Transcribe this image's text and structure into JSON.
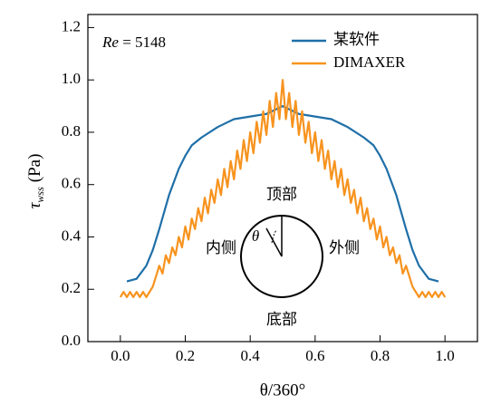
{
  "chart_data": {
    "type": "line",
    "annotation": {
      "symbol": "Re",
      "text": "= 5148"
    },
    "x_label": "θ/360°",
    "y_label": {
      "symbol": "τ",
      "subscript": "wss",
      "unit": "(Pa)"
    },
    "inset": {
      "top": "顶部",
      "bottom": "底部",
      "left": "内侧",
      "right": "外侧",
      "angle": "θ"
    },
    "xlim": [
      -0.1,
      1.1
    ],
    "ylim": [
      0,
      1.25
    ],
    "xticks": [
      {
        "value": 0,
        "label": "0.0"
      },
      {
        "value": 0.2,
        "label": "0.2"
      },
      {
        "value": 0.4,
        "label": "0.4"
      },
      {
        "value": 0.6,
        "label": "0.6"
      },
      {
        "value": 0.8,
        "label": "0.8"
      },
      {
        "value": 1,
        "label": "1.0"
      }
    ],
    "yticks": [
      {
        "value": 0,
        "label": "0.0"
      },
      {
        "value": 0.2,
        "label": "0.2"
      },
      {
        "value": 0.4,
        "label": "0.4"
      },
      {
        "value": 0.6,
        "label": "0.6"
      },
      {
        "value": 0.8,
        "label": "0.8"
      },
      {
        "value": 1,
        "label": "1.0"
      },
      {
        "value": 1.2,
        "label": "1.2"
      }
    ],
    "legend": "top-right",
    "series": [
      {
        "name": "某软件",
        "color": "#1f6fa8",
        "x": [
          0.02,
          0.05,
          0.08,
          0.1,
          0.12,
          0.15,
          0.18,
          0.2,
          0.22,
          0.25,
          0.3,
          0.35,
          0.4,
          0.45,
          0.5,
          0.55,
          0.6,
          0.65,
          0.7,
          0.75,
          0.78,
          0.8,
          0.82,
          0.85,
          0.88,
          0.9,
          0.92,
          0.95,
          0.98
        ],
        "values": [
          0.23,
          0.24,
          0.29,
          0.35,
          0.43,
          0.56,
          0.66,
          0.71,
          0.75,
          0.78,
          0.82,
          0.85,
          0.86,
          0.87,
          0.9,
          0.87,
          0.86,
          0.85,
          0.82,
          0.78,
          0.75,
          0.71,
          0.66,
          0.56,
          0.43,
          0.35,
          0.29,
          0.24,
          0.23
        ]
      },
      {
        "name": "DIMAXER",
        "color": "#f7931e",
        "x": [
          0,
          0.01,
          0.02,
          0.03,
          0.04,
          0.05,
          0.06,
          0.07,
          0.08,
          0.09,
          0.1,
          0.11,
          0.12,
          0.13,
          0.14,
          0.15,
          0.16,
          0.17,
          0.18,
          0.19,
          0.2,
          0.21,
          0.22,
          0.23,
          0.24,
          0.25,
          0.26,
          0.27,
          0.28,
          0.29,
          0.3,
          0.31,
          0.32,
          0.33,
          0.34,
          0.35,
          0.36,
          0.37,
          0.38,
          0.39,
          0.4,
          0.41,
          0.42,
          0.43,
          0.44,
          0.45,
          0.46,
          0.47,
          0.48,
          0.49,
          0.5,
          0.51,
          0.52,
          0.53,
          0.54,
          0.55,
          0.56,
          0.57,
          0.58,
          0.59,
          0.6,
          0.61,
          0.62,
          0.63,
          0.64,
          0.65,
          0.66,
          0.67,
          0.68,
          0.69,
          0.7,
          0.71,
          0.72,
          0.73,
          0.74,
          0.75,
          0.76,
          0.77,
          0.78,
          0.79,
          0.8,
          0.81,
          0.82,
          0.83,
          0.84,
          0.85,
          0.86,
          0.87,
          0.88,
          0.89,
          0.9,
          0.91,
          0.92,
          0.93,
          0.94,
          0.95,
          0.96,
          0.97,
          0.98,
          0.99,
          1
        ],
        "values": [
          0.17,
          0.19,
          0.17,
          0.19,
          0.17,
          0.19,
          0.17,
          0.19,
          0.17,
          0.19,
          0.21,
          0.25,
          0.29,
          0.26,
          0.33,
          0.3,
          0.36,
          0.33,
          0.4,
          0.36,
          0.44,
          0.39,
          0.47,
          0.43,
          0.51,
          0.46,
          0.55,
          0.49,
          0.58,
          0.53,
          0.62,
          0.56,
          0.66,
          0.59,
          0.69,
          0.62,
          0.73,
          0.66,
          0.77,
          0.69,
          0.8,
          0.72,
          0.84,
          0.76,
          0.88,
          0.79,
          0.92,
          0.82,
          0.95,
          0.85,
          1.0,
          0.85,
          0.95,
          0.82,
          0.92,
          0.79,
          0.88,
          0.76,
          0.84,
          0.72,
          0.8,
          0.69,
          0.77,
          0.66,
          0.73,
          0.62,
          0.69,
          0.59,
          0.66,
          0.56,
          0.62,
          0.53,
          0.58,
          0.49,
          0.55,
          0.46,
          0.51,
          0.43,
          0.47,
          0.39,
          0.44,
          0.36,
          0.4,
          0.33,
          0.36,
          0.3,
          0.33,
          0.26,
          0.29,
          0.25,
          0.21,
          0.19,
          0.17,
          0.19,
          0.17,
          0.19,
          0.17,
          0.19,
          0.17,
          0.19,
          0.17
        ]
      }
    ]
  }
}
